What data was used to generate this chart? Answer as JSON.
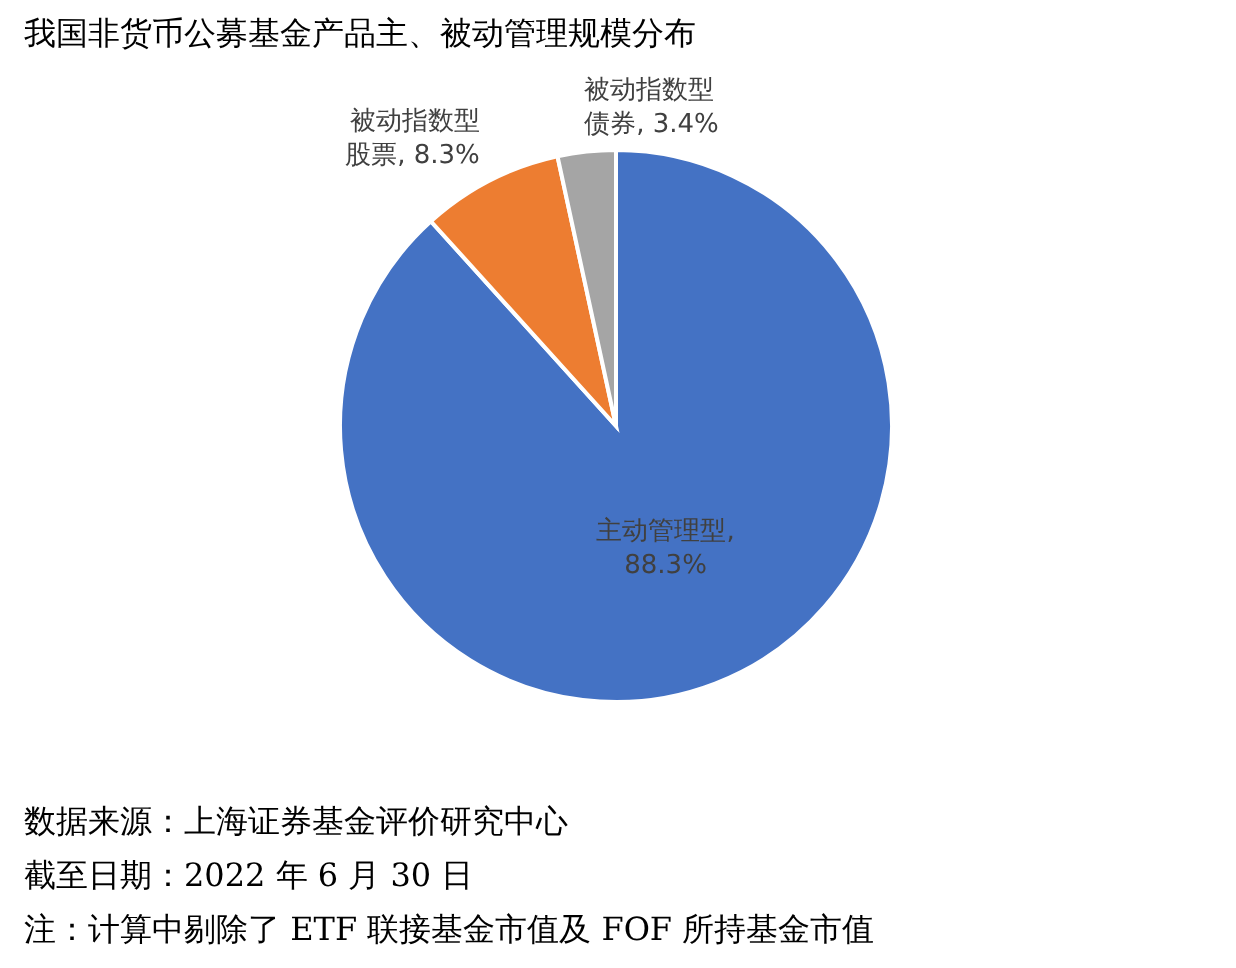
{
  "chart_data": {
    "type": "pie",
    "title": "我国非货币公募基金产品主、被动管理规模分布",
    "categories": [
      "主动管理型",
      "被动指数型股票",
      "被动指数型债券"
    ],
    "values": [
      88.3,
      8.3,
      3.4
    ],
    "colors": [
      "#4472c4",
      "#ed7d31",
      "#a5a5a5"
    ],
    "value_labels": [
      ", 88.3%",
      ", 8.3%",
      ", 3.4%"
    ],
    "annotations": [
      "数据来源：上海证券基金评价研究中心",
      "截至日期：2022 年 6 月 30 日",
      "注：计算中剔除了 ETF 联接基金市值及 FOF 所持基金市值"
    ]
  }
}
